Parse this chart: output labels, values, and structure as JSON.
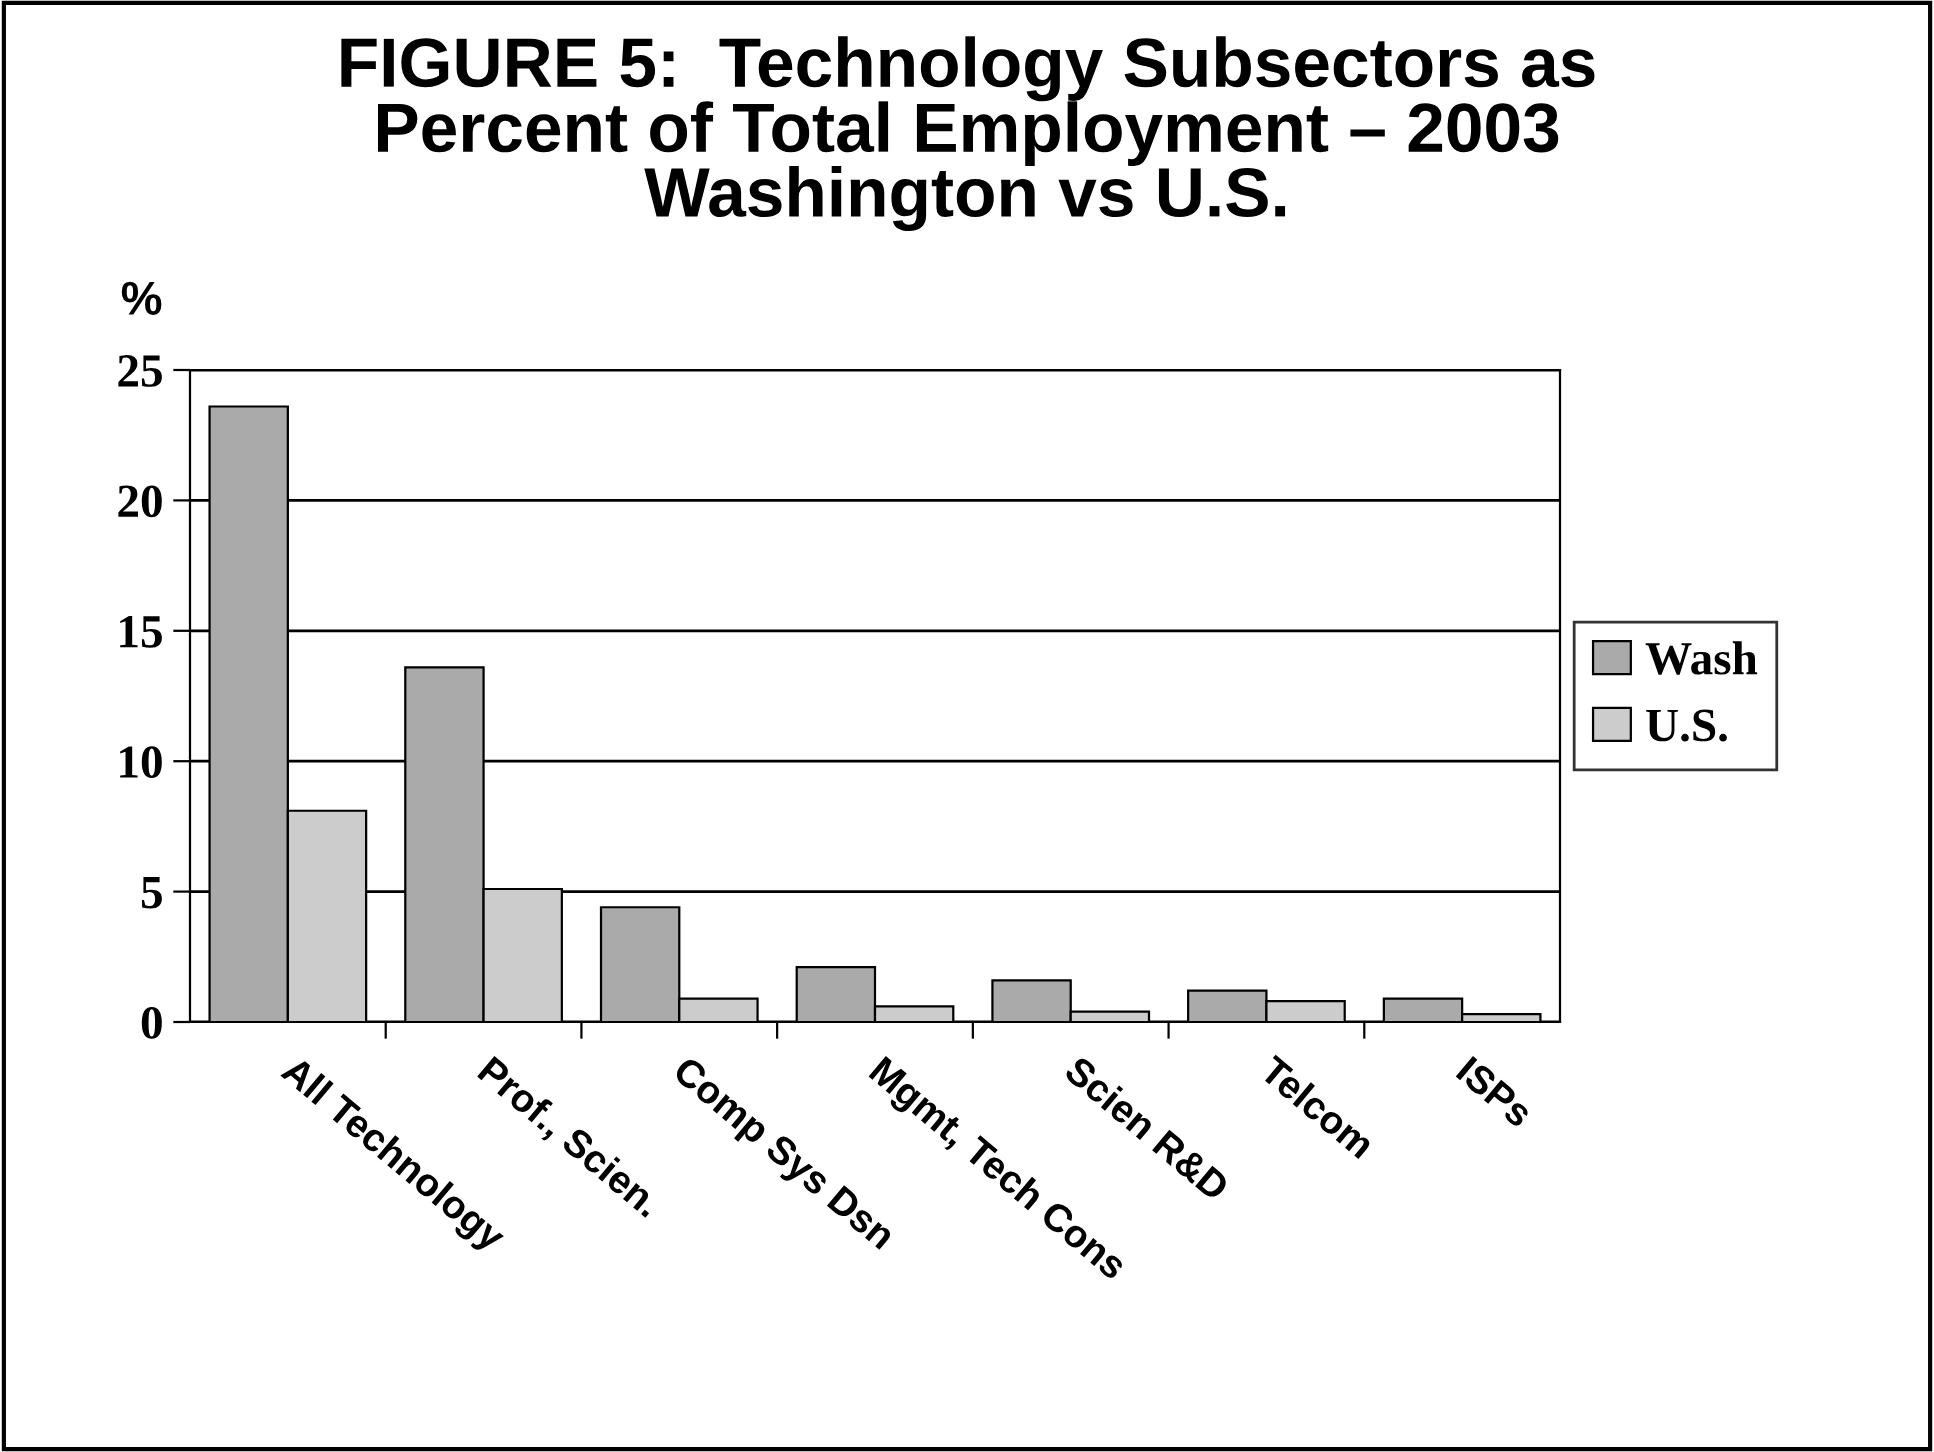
{
  "chart_data": {
    "type": "bar",
    "title": "FIGURE 5:  Technology Subsectors as\nPercent of Total Employment – 2003\nWashington vs U.S.",
    "ylabel": "%",
    "categories": [
      "All Technology",
      "Prof., Scien.",
      "Comp Sys Dsn",
      "Mgmt, Tech Cons",
      "Scien R&D",
      "Telcom",
      "ISPs"
    ],
    "series": [
      {
        "name": "Wash",
        "color": "#aaaaaa",
        "values": [
          23.6,
          13.6,
          4.4,
          2.1,
          1.6,
          1.2,
          0.9
        ]
      },
      {
        "name": "U.S.",
        "color": "#cccccc",
        "values": [
          8.1,
          5.1,
          0.9,
          0.6,
          0.4,
          0.8,
          0.3
        ]
      }
    ],
    "ylim": [
      0,
      25
    ],
    "yticks": [
      0,
      5,
      10,
      15,
      20,
      25
    ],
    "grid": "y",
    "legend": "right"
  }
}
